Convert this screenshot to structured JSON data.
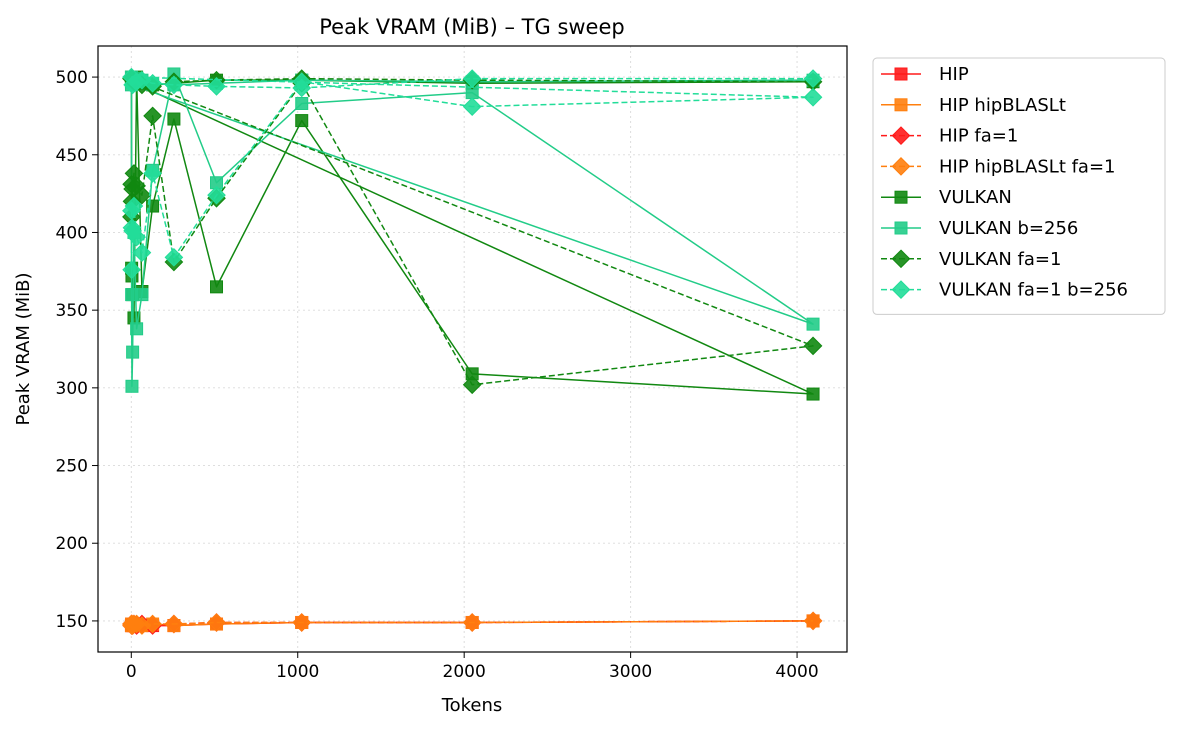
{
  "chart_data": {
    "type": "line",
    "title": "Peak VRAM (MiB) – TG sweep",
    "xlabel": "Tokens",
    "ylabel": "Peak VRAM (MiB)",
    "xlim": [
      -200,
      4300
    ],
    "ylim": [
      130,
      520
    ],
    "xticks": [
      0,
      1000,
      2000,
      3000,
      4000
    ],
    "yticks": [
      150,
      200,
      250,
      300,
      350,
      400,
      450,
      500
    ],
    "grid": true,
    "legend_position": "outside-right-top",
    "series": [
      {
        "name": "HIP",
        "color": "#ff1a1a",
        "marker": "square",
        "dash": "solid",
        "points": [
          [
            1,
            147
          ],
          [
            2,
            148
          ],
          [
            4,
            147
          ],
          [
            8,
            148
          ],
          [
            16,
            147
          ],
          [
            32,
            148
          ],
          [
            64,
            147
          ],
          [
            128,
            147
          ],
          [
            256,
            147
          ],
          [
            512,
            148
          ],
          [
            1024,
            149
          ],
          [
            2048,
            149
          ],
          [
            4096,
            150
          ]
        ]
      },
      {
        "name": "HIP hipBLASLt",
        "color": "#ff7f0e",
        "marker": "square",
        "dash": "solid",
        "points": [
          [
            1,
            147
          ],
          [
            2,
            148
          ],
          [
            4,
            147
          ],
          [
            8,
            148
          ],
          [
            16,
            147
          ],
          [
            32,
            148
          ],
          [
            64,
            147
          ],
          [
            128,
            148
          ],
          [
            256,
            147
          ],
          [
            512,
            148
          ],
          [
            1024,
            149
          ],
          [
            2048,
            149
          ],
          [
            4096,
            150
          ]
        ]
      },
      {
        "name": "HIP fa=1",
        "color": "#ff1a1a",
        "marker": "diamond",
        "dash": "dashed",
        "points": [
          [
            1,
            148
          ],
          [
            2,
            147
          ],
          [
            4,
            148
          ],
          [
            8,
            147
          ],
          [
            16,
            148
          ],
          [
            32,
            147
          ],
          [
            64,
            148
          ],
          [
            128,
            147
          ],
          [
            256,
            148
          ],
          [
            512,
            149
          ],
          [
            1024,
            149
          ],
          [
            2048,
            149
          ],
          [
            4096,
            150
          ]
        ]
      },
      {
        "name": "HIP hipBLASLt fa=1",
        "color": "#ff7f0e",
        "marker": "diamond",
        "dash": "dashed",
        "points": [
          [
            1,
            148
          ],
          [
            2,
            147
          ],
          [
            4,
            148
          ],
          [
            8,
            147
          ],
          [
            16,
            148
          ],
          [
            32,
            148
          ],
          [
            64,
            147
          ],
          [
            128,
            148
          ],
          [
            256,
            148
          ],
          [
            512,
            149
          ],
          [
            1024,
            149
          ],
          [
            2048,
            149
          ],
          [
            4096,
            150
          ]
        ]
      },
      {
        "name": "VULKAN",
        "color": "#118811",
        "marker": "square",
        "dash": "solid",
        "points": [
          [
            1,
            500
          ],
          [
            2,
            377
          ],
          [
            4,
            372
          ],
          [
            8,
            360
          ],
          [
            16,
            345
          ],
          [
            32,
            500
          ],
          [
            64,
            362
          ],
          [
            128,
            417
          ],
          [
            256,
            473
          ],
          [
            512,
            365
          ],
          [
            1024,
            472
          ],
          [
            2048,
            309
          ],
          [
            4096,
            296
          ],
          [
            1,
            497
          ],
          [
            16,
            499
          ],
          [
            32,
            497
          ],
          [
            64,
            496
          ],
          [
            128,
            495
          ],
          [
            256,
            496
          ],
          [
            512,
            498
          ],
          [
            1024,
            498
          ],
          [
            2048,
            496
          ],
          [
            4096,
            497
          ]
        ]
      },
      {
        "name": "VULKAN b=256",
        "color": "#22cc88",
        "marker": "square",
        "dash": "solid",
        "points": [
          [
            1,
            500
          ],
          [
            2,
            360
          ],
          [
            4,
            301
          ],
          [
            8,
            323
          ],
          [
            16,
            400
          ],
          [
            32,
            338
          ],
          [
            64,
            360
          ],
          [
            128,
            440
          ],
          [
            256,
            502
          ],
          [
            512,
            432
          ],
          [
            1024,
            483
          ],
          [
            2048,
            490
          ],
          [
            4096,
            341
          ],
          [
            1,
            495
          ],
          [
            8,
            497
          ],
          [
            32,
            499
          ],
          [
            64,
            498
          ],
          [
            128,
            496
          ],
          [
            256,
            495
          ],
          [
            512,
            496
          ],
          [
            1024,
            498
          ],
          [
            2048,
            497
          ],
          [
            4096,
            498
          ]
        ]
      },
      {
        "name": "VULKAN fa=1",
        "color": "#118811",
        "marker": "diamond",
        "dash": "dashed",
        "points": [
          [
            1,
            410
          ],
          [
            2,
            431
          ],
          [
            4,
            420
          ],
          [
            8,
            428
          ],
          [
            16,
            438
          ],
          [
            32,
            430
          ],
          [
            64,
            424
          ],
          [
            128,
            475
          ],
          [
            256,
            381
          ],
          [
            512,
            422
          ],
          [
            1024,
            496
          ],
          [
            2048,
            302
          ],
          [
            4096,
            327
          ],
          [
            1,
            499
          ],
          [
            16,
            497
          ],
          [
            64,
            495
          ],
          [
            128,
            494
          ],
          [
            256,
            497
          ],
          [
            512,
            498
          ],
          [
            1024,
            499
          ],
          [
            2048,
            498
          ],
          [
            4096,
            497
          ]
        ]
      },
      {
        "name": "VULKAN fa=1 b=256",
        "color": "#22dd99",
        "marker": "diamond",
        "dash": "dashed",
        "points": [
          [
            1,
            414
          ],
          [
            2,
            376
          ],
          [
            4,
            403
          ],
          [
            8,
            401
          ],
          [
            16,
            417
          ],
          [
            32,
            397
          ],
          [
            64,
            387
          ],
          [
            128,
            438
          ],
          [
            256,
            384
          ],
          [
            512,
            424
          ],
          [
            1024,
            497
          ],
          [
            2048,
            481
          ],
          [
            4096,
            487
          ],
          [
            1,
            500
          ],
          [
            8,
            495
          ],
          [
            32,
            497
          ],
          [
            64,
            498
          ],
          [
            128,
            496
          ],
          [
            256,
            495
          ],
          [
            512,
            494
          ],
          [
            1024,
            493
          ],
          [
            2048,
            499
          ],
          [
            4096,
            499
          ]
        ]
      }
    ]
  }
}
